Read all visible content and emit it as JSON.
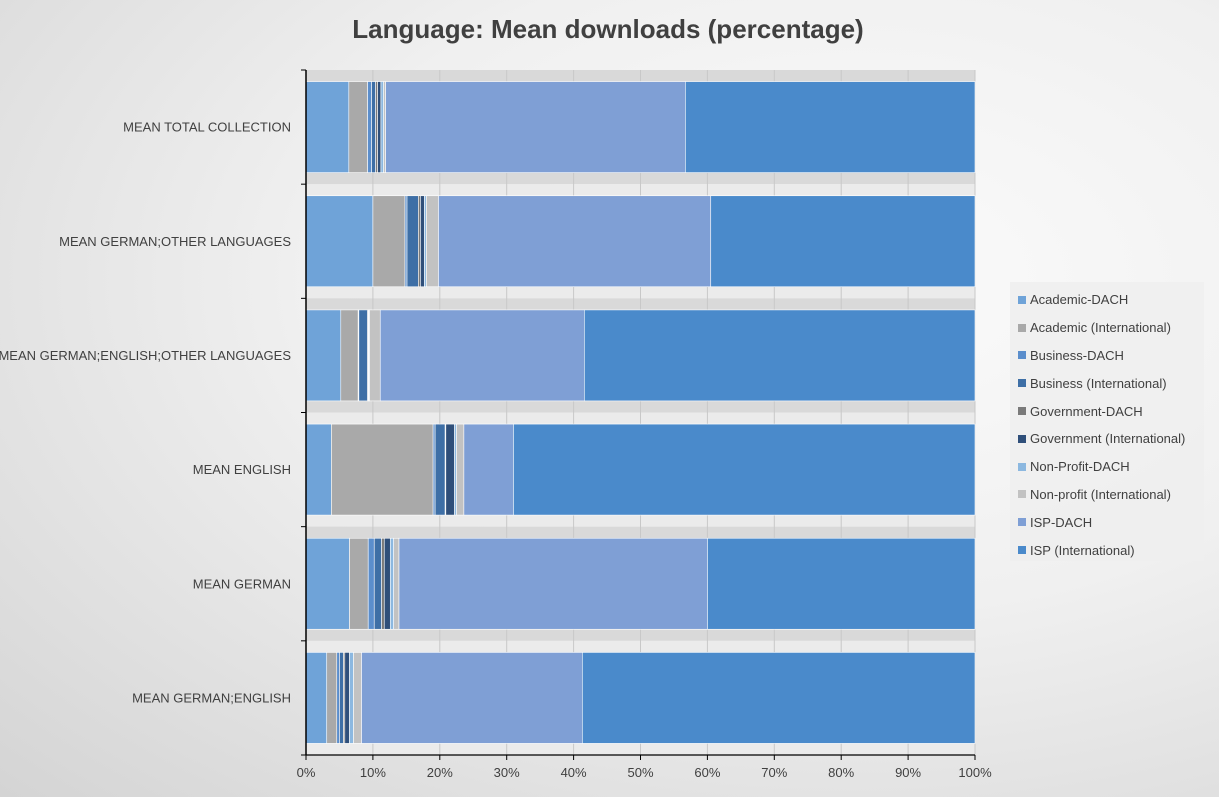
{
  "chart_data": {
    "type": "bar",
    "orientation": "horizontal",
    "stacked": true,
    "percent_stacked": true,
    "title": "Language: Mean downloads (percentage)",
    "xlabel": "",
    "ylabel": "",
    "xlim": [
      0,
      100
    ],
    "x_ticks": [
      "0%",
      "10%",
      "20%",
      "30%",
      "40%",
      "50%",
      "60%",
      "70%",
      "80%",
      "90%",
      "100%"
    ],
    "grid": "vertical",
    "legend_position": "right",
    "categories": [
      "MEAN TOTAL COLLECTION",
      "MEAN GERMAN;OTHER LANGUAGES",
      "MEAN GERMAN;ENGLISH;OTHER LANGUAGES",
      "MEAN ENGLISH",
      "MEAN GERMAN",
      "MEAN GERMAN;ENGLISH"
    ],
    "series": [
      {
        "name": "Academic-DACH",
        "color": "#6fa3d8",
        "values": [
          6.4,
          10.0,
          5.2,
          3.8,
          6.5,
          3.1
        ]
      },
      {
        "name": "Academic (International)",
        "color": "#a9a9a9",
        "values": [
          2.8,
          4.8,
          2.6,
          15.2,
          2.8,
          1.5
        ]
      },
      {
        "name": "Business-DACH",
        "color": "#5b8ecc",
        "values": [
          0.6,
          0.3,
          0.1,
          0.3,
          0.9,
          0.4
        ]
      },
      {
        "name": "Business (International)",
        "color": "#3e6fa6",
        "values": [
          0.6,
          1.7,
          1.3,
          1.5,
          1.1,
          0.6
        ]
      },
      {
        "name": "Government-DACH",
        "color": "#7a7a7a",
        "values": [
          0.3,
          0.3,
          0.1,
          0.1,
          0.4,
          0.2
        ]
      },
      {
        "name": "Government (International)",
        "color": "#2f4f7a",
        "values": [
          0.5,
          0.6,
          0.1,
          1.3,
          0.9,
          0.7
        ]
      },
      {
        "name": "Non-Profit-DACH",
        "color": "#8cb8e0",
        "values": [
          0.4,
          0.3,
          0.1,
          0.3,
          0.5,
          0.6
        ]
      },
      {
        "name": "Non-profit (International)",
        "color": "#c2c2c2",
        "values": [
          0.3,
          1.8,
          1.6,
          1.1,
          0.8,
          1.2
        ]
      },
      {
        "name": "ISP-DACH",
        "color": "#7f9fd5",
        "values": [
          44.8,
          40.7,
          30.5,
          7.4,
          46.1,
          33.0
        ]
      },
      {
        "name": "ISP (International)",
        "color": "#4a8acb",
        "values": [
          43.3,
          39.5,
          58.4,
          69.0,
          40.0,
          58.7
        ]
      }
    ]
  }
}
